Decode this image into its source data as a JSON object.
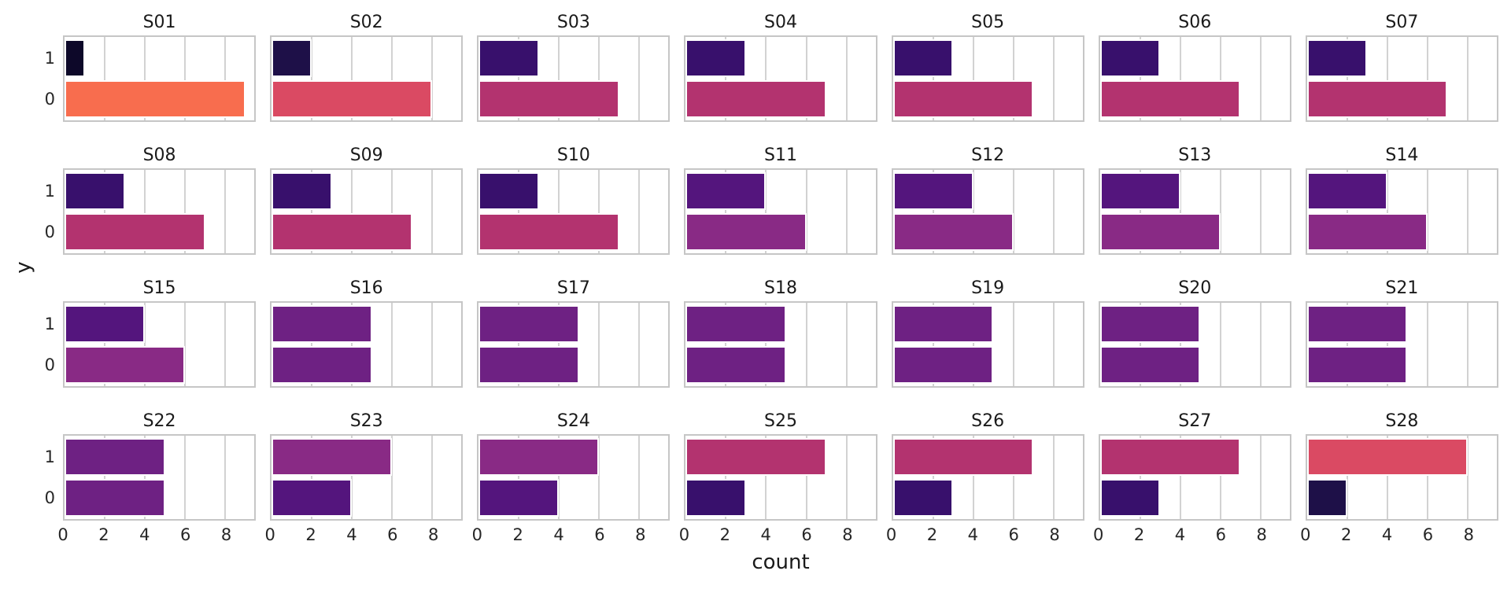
{
  "chart_data": {
    "type": "bar",
    "orientation": "horizontal",
    "xlabel": "count",
    "ylabel": "y",
    "categories": [
      "1",
      "0"
    ],
    "x_ticks": [
      0,
      2,
      4,
      6,
      8
    ],
    "xlim": [
      0,
      9.45
    ],
    "gridline_x": [
      2,
      4,
      6,
      8
    ],
    "facet_grid": {
      "rows": 4,
      "cols": 7
    },
    "legend": "none",
    "grid": "vertical major gridlines at x ticks, white panel background, grey panel border",
    "bar_color_encoding": "bar fill encodes count value (magma-like colormap, dark = low, orange = high)",
    "colors_by_count": {
      "1": "#0d0829",
      "2": "#1e1048",
      "3": "#38106c",
      "4": "#54157d",
      "5": "#6e2183",
      "6": "#892a85",
      "7": "#b3336f",
      "8": "#da4a63",
      "9": "#f86d4e"
    },
    "facets": [
      {
        "title": "S01",
        "values": {
          "1": 1,
          "0": 9
        }
      },
      {
        "title": "S02",
        "values": {
          "1": 2,
          "0": 8
        }
      },
      {
        "title": "S03",
        "values": {
          "1": 3,
          "0": 7
        }
      },
      {
        "title": "S04",
        "values": {
          "1": 3,
          "0": 7
        }
      },
      {
        "title": "S05",
        "values": {
          "1": 3,
          "0": 7
        }
      },
      {
        "title": "S06",
        "values": {
          "1": 3,
          "0": 7
        }
      },
      {
        "title": "S07",
        "values": {
          "1": 3,
          "0": 7
        }
      },
      {
        "title": "S08",
        "values": {
          "1": 3,
          "0": 7
        }
      },
      {
        "title": "S09",
        "values": {
          "1": 3,
          "0": 7
        }
      },
      {
        "title": "S10",
        "values": {
          "1": 3,
          "0": 7
        }
      },
      {
        "title": "S11",
        "values": {
          "1": 4,
          "0": 6
        }
      },
      {
        "title": "S12",
        "values": {
          "1": 4,
          "0": 6
        }
      },
      {
        "title": "S13",
        "values": {
          "1": 4,
          "0": 6
        }
      },
      {
        "title": "S14",
        "values": {
          "1": 4,
          "0": 6
        }
      },
      {
        "title": "S15",
        "values": {
          "1": 4,
          "0": 6
        }
      },
      {
        "title": "S16",
        "values": {
          "1": 5,
          "0": 5
        }
      },
      {
        "title": "S17",
        "values": {
          "1": 5,
          "0": 5
        }
      },
      {
        "title": "S18",
        "values": {
          "1": 5,
          "0": 5
        }
      },
      {
        "title": "S19",
        "values": {
          "1": 5,
          "0": 5
        }
      },
      {
        "title": "S20",
        "values": {
          "1": 5,
          "0": 5
        }
      },
      {
        "title": "S21",
        "values": {
          "1": 5,
          "0": 5
        }
      },
      {
        "title": "S22",
        "values": {
          "1": 5,
          "0": 5
        }
      },
      {
        "title": "S23",
        "values": {
          "1": 6,
          "0": 4
        }
      },
      {
        "title": "S24",
        "values": {
          "1": 6,
          "0": 4
        }
      },
      {
        "title": "S25",
        "values": {
          "1": 7,
          "0": 3
        }
      },
      {
        "title": "S26",
        "values": {
          "1": 7,
          "0": 3
        }
      },
      {
        "title": "S27",
        "values": {
          "1": 7,
          "0": 3
        }
      },
      {
        "title": "S28",
        "values": {
          "1": 8,
          "0": 2
        }
      }
    ]
  }
}
